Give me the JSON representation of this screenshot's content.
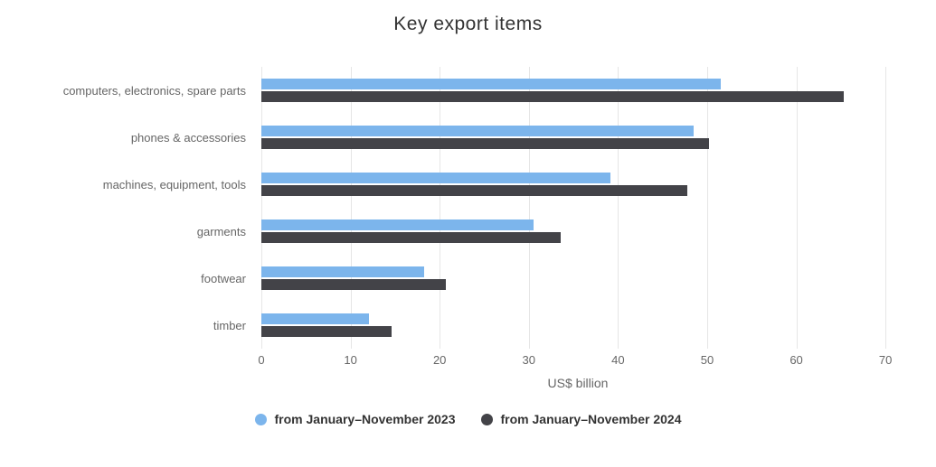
{
  "chart_data": {
    "type": "bar",
    "orientation": "horizontal",
    "title": "Key export items",
    "xlabel": "US$ billion",
    "ylabel": "",
    "xlim": [
      0,
      70
    ],
    "xticks": [
      0,
      10,
      20,
      30,
      40,
      50,
      60,
      70
    ],
    "grid": true,
    "legend_position": "bottom",
    "categories": [
      "computers, electronics, spare parts",
      "phones & accessories",
      "machines, equipment, tools",
      "garments",
      "footwear",
      "timber"
    ],
    "series": [
      {
        "name": "from January–November 2023",
        "color": "#7cb5ec",
        "values": [
          51.5,
          48.5,
          39.2,
          30.5,
          18.3,
          12.1
        ]
      },
      {
        "name": "from January–November 2024",
        "color": "#434348",
        "values": [
          65.3,
          50.2,
          47.8,
          33.6,
          20.7,
          14.6
        ]
      }
    ]
  },
  "colors": {
    "background": "#ffffff",
    "gridline": "#e6e6e6",
    "title_text": "#333333",
    "axis_text": "#666666",
    "legend_text": "#333333"
  }
}
